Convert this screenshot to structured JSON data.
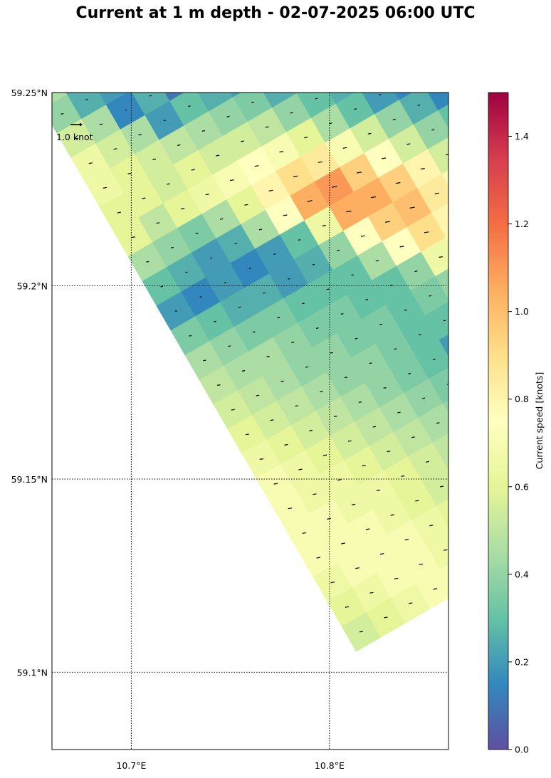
{
  "title": "Current at 1 m depth - 02-07-2025 06:00 UTC",
  "map": {
    "lon_ticks": [
      10.7,
      10.8
    ],
    "lat_ticks": [
      59.1,
      59.15,
      59.2,
      59.25
    ],
    "lon_labels": [
      "10.7°E",
      "10.8°E"
    ],
    "lat_labels": [
      "59.1°N",
      "59.15°N",
      "59.2°N",
      "59.25°N"
    ],
    "lon_range": [
      10.66,
      10.86
    ],
    "lat_range": [
      59.08,
      59.25
    ],
    "gridlines": true,
    "reference_arrow_label": "1.0 knot",
    "grid_rotation_deg": -30
  },
  "colorbar": {
    "label": "Current speed [knots]",
    "ticks": [
      "0.0",
      "0.2",
      "0.4",
      "0.6",
      "0.8",
      "1.0",
      "1.2",
      "1.4"
    ],
    "tick_values": [
      0,
      0.2,
      0.4,
      0.6,
      0.8,
      1.0,
      1.2,
      1.4
    ],
    "range": [
      0,
      1.5
    ],
    "colormap": "Spectral_r",
    "stops": [
      "#5e4fa2",
      "#3288bd",
      "#66c2a5",
      "#abdda4",
      "#e6f598",
      "#ffffbf",
      "#fee08b",
      "#fdae61",
      "#f46d43",
      "#d53e4f",
      "#9e0142"
    ]
  },
  "chart_data": {
    "type": "heatmap",
    "quantity": "Current speed",
    "units": "knots",
    "depth": "1 m",
    "time": "02-07-2025 06:00 UTC",
    "rows": [
      [
        0.45,
        0.2,
        null,
        0.1,
        0.15,
        0.2,
        null,
        null,
        null,
        null,
        null,
        null,
        null,
        null
      ],
      [
        0.4,
        0.25,
        0.2,
        null,
        0.05,
        0.3,
        0.25,
        null,
        null,
        null,
        null,
        null,
        null,
        null
      ],
      [
        0.55,
        0.45,
        0.15,
        0.25,
        0.1,
        0.2,
        0.25,
        0.05,
        0.05,
        0.1,
        null,
        null,
        null,
        null
      ],
      [
        0.65,
        0.55,
        0.45,
        0.2,
        0.3,
        0.25,
        0.2,
        0.15,
        0.25,
        0.15,
        null,
        null,
        null,
        null
      ],
      [
        0.65,
        0.6,
        0.55,
        0.5,
        0.45,
        0.4,
        0.35,
        0.25,
        0.2,
        0.2,
        0.2,
        null,
        null,
        null
      ],
      [
        0.6,
        0.6,
        0.55,
        0.6,
        0.55,
        0.55,
        0.5,
        0.4,
        0.3,
        0.25,
        0.2,
        0.15,
        0.2,
        0.05
      ],
      [
        0.6,
        0.5,
        0.6,
        0.65,
        0.7,
        0.75,
        0.7,
        0.6,
        0.45,
        0.3,
        0.2,
        0.15,
        0.1,
        0.05
      ],
      [
        0.45,
        0.4,
        0.35,
        0.45,
        0.6,
        0.8,
        0.9,
        0.85,
        0.7,
        0.55,
        0.4,
        0.25,
        0.15,
        0.1
      ],
      [
        0.3,
        0.25,
        0.2,
        0.25,
        0.45,
        0.75,
        1.05,
        1.1,
        0.95,
        0.75,
        0.55,
        0.4,
        0.3,
        0.35
      ],
      [
        0.2,
        0.15,
        0.2,
        0.15,
        0.2,
        0.3,
        0.65,
        1.05,
        1.05,
        0.95,
        0.8,
        0.55,
        0.45,
        0.3
      ],
      [
        0.35,
        0.3,
        0.25,
        0.25,
        0.2,
        0.25,
        0.4,
        0.75,
        0.95,
        1.0,
        0.85,
        0.7,
        0.55,
        0.45
      ],
      [
        0.45,
        0.4,
        0.35,
        0.35,
        0.3,
        0.3,
        0.3,
        0.45,
        0.75,
        0.9,
        0.8,
        0.65,
        0.5,
        0.45
      ],
      [
        0.5,
        0.45,
        0.45,
        0.4,
        0.35,
        0.35,
        0.3,
        0.3,
        0.4,
        0.65,
        0.7,
        0.6,
        0.45,
        0.35
      ],
      [
        0.55,
        0.5,
        0.45,
        0.4,
        0.4,
        0.35,
        0.35,
        0.3,
        0.35,
        0.4,
        0.55,
        0.45,
        0.25,
        0.1
      ],
      [
        0.6,
        0.55,
        0.5,
        0.45,
        0.4,
        0.4,
        0.35,
        0.3,
        0.3,
        0.35,
        0.45,
        0.3,
        0.2,
        0.05
      ],
      [
        0.65,
        0.6,
        0.55,
        0.5,
        0.45,
        0.4,
        0.35,
        0.3,
        0.2,
        0.25,
        0.4,
        0.25,
        null,
        null
      ],
      [
        0.7,
        0.65,
        0.6,
        0.55,
        0.5,
        0.45,
        0.4,
        0.35,
        0.25,
        0.2,
        0.45,
        0.5,
        0.4,
        null
      ],
      [
        0.7,
        0.65,
        0.65,
        0.6,
        0.55,
        0.5,
        0.45,
        0.4,
        null,
        null,
        0.45,
        0.5,
        0.45,
        null
      ],
      [
        0.7,
        0.7,
        0.65,
        0.65,
        0.6,
        0.55,
        0.5,
        0.45,
        0.35,
        null,
        0.4,
        0.45,
        0.5,
        null
      ],
      [
        0.7,
        0.7,
        0.7,
        0.65,
        0.6,
        0.55,
        0.5,
        0.45,
        0.4,
        0.3,
        0.35,
        0.4,
        0.45,
        0.4
      ],
      [
        0.65,
        0.7,
        0.7,
        0.7,
        0.65,
        0.6,
        0.55,
        0.5,
        0.45,
        0.4,
        0.35,
        0.4,
        0.3,
        0.25
      ],
      [
        0.6,
        0.65,
        0.7,
        0.7,
        0.65,
        0.6,
        0.55,
        0.5,
        0.45,
        0.45,
        0.4,
        0.45,
        0.3,
        0.15
      ],
      [
        0.55,
        0.6,
        0.65,
        0.7,
        0.7,
        0.65,
        0.6,
        0.55,
        0.5,
        0.45,
        0.45,
        0.4,
        0.35,
        0.1
      ]
    ]
  }
}
